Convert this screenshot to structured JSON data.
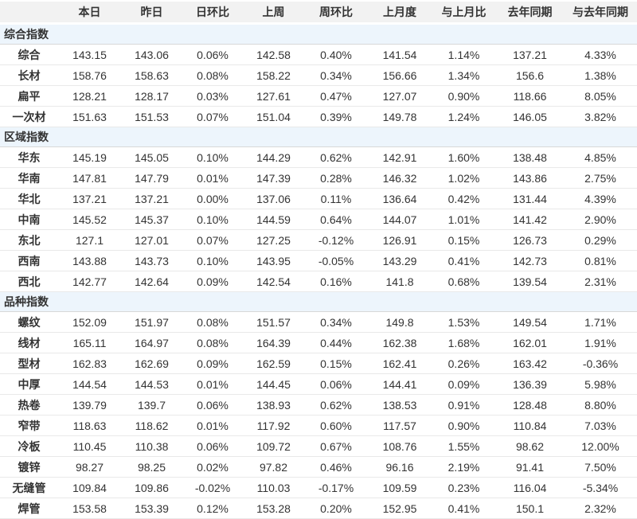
{
  "colors": {
    "up": "#e2392f",
    "down": "#23a143",
    "neutral": "#333333",
    "header_bg": "#f2f2f2",
    "section_bg": "#edf5fc"
  },
  "chart_data": {
    "type": "table",
    "columns": [
      "",
      "本日",
      "昨日",
      "日环比",
      "上周",
      "周环比",
      "上月度",
      "与上月比",
      "去年同期",
      "与去年同期"
    ],
    "groups": [
      {
        "label": "综合指数",
        "rows": [
          {
            "label": "综合",
            "values": [
              "143.15",
              "143.06",
              "0.06%",
              "142.58",
              "0.40%",
              "141.54",
              "1.14%",
              "137.21",
              "4.33%"
            ]
          },
          {
            "label": "长材",
            "values": [
              "158.76",
              "158.63",
              "0.08%",
              "158.22",
              "0.34%",
              "156.66",
              "1.34%",
              "156.6",
              "1.38%"
            ]
          },
          {
            "label": "扁平",
            "values": [
              "128.21",
              "128.17",
              "0.03%",
              "127.61",
              "0.47%",
              "127.07",
              "0.90%",
              "118.66",
              "8.05%"
            ]
          },
          {
            "label": "一次材",
            "values": [
              "151.63",
              "151.53",
              "0.07%",
              "151.04",
              "0.39%",
              "149.78",
              "1.24%",
              "146.05",
              "3.82%"
            ]
          }
        ]
      },
      {
        "label": "区域指数",
        "rows": [
          {
            "label": "华东",
            "values": [
              "145.19",
              "145.05",
              "0.10%",
              "144.29",
              "0.62%",
              "142.91",
              "1.60%",
              "138.48",
              "4.85%"
            ]
          },
          {
            "label": "华南",
            "values": [
              "147.81",
              "147.79",
              "0.01%",
              "147.39",
              "0.28%",
              "146.32",
              "1.02%",
              "143.86",
              "2.75%"
            ]
          },
          {
            "label": "华北",
            "values": [
              "137.21",
              "137.21",
              "0.00%",
              "137.06",
              "0.11%",
              "136.64",
              "0.42%",
              "131.44",
              "4.39%"
            ]
          },
          {
            "label": "中南",
            "values": [
              "145.52",
              "145.37",
              "0.10%",
              "144.59",
              "0.64%",
              "144.07",
              "1.01%",
              "141.42",
              "2.90%"
            ]
          },
          {
            "label": "东北",
            "values": [
              "127.1",
              "127.01",
              "0.07%",
              "127.25",
              "-0.12%",
              "126.91",
              "0.15%",
              "126.73",
              "0.29%"
            ]
          },
          {
            "label": "西南",
            "values": [
              "143.88",
              "143.73",
              "0.10%",
              "143.95",
              "-0.05%",
              "143.29",
              "0.41%",
              "142.73",
              "0.81%"
            ]
          },
          {
            "label": "西北",
            "values": [
              "142.77",
              "142.64",
              "0.09%",
              "142.54",
              "0.16%",
              "141.8",
              "0.68%",
              "139.54",
              "2.31%"
            ]
          }
        ]
      },
      {
        "label": "品种指数",
        "rows": [
          {
            "label": "螺纹",
            "values": [
              "152.09",
              "151.97",
              "0.08%",
              "151.57",
              "0.34%",
              "149.8",
              "1.53%",
              "149.54",
              "1.71%"
            ]
          },
          {
            "label": "线材",
            "values": [
              "165.11",
              "164.97",
              "0.08%",
              "164.39",
              "0.44%",
              "162.38",
              "1.68%",
              "162.01",
              "1.91%"
            ]
          },
          {
            "label": "型材",
            "values": [
              "162.83",
              "162.69",
              "0.09%",
              "162.59",
              "0.15%",
              "162.41",
              "0.26%",
              "163.42",
              "-0.36%"
            ]
          },
          {
            "label": "中厚",
            "values": [
              "144.54",
              "144.53",
              "0.01%",
              "144.45",
              "0.06%",
              "144.41",
              "0.09%",
              "136.39",
              "5.98%"
            ]
          },
          {
            "label": "热卷",
            "values": [
              "139.79",
              "139.7",
              "0.06%",
              "138.93",
              "0.62%",
              "138.53",
              "0.91%",
              "128.48",
              "8.80%"
            ]
          },
          {
            "label": "窄带",
            "values": [
              "118.63",
              "118.62",
              "0.01%",
              "117.92",
              "0.60%",
              "117.57",
              "0.90%",
              "110.84",
              "7.03%"
            ]
          },
          {
            "label": "冷板",
            "values": [
              "110.45",
              "110.38",
              "0.06%",
              "109.72",
              "0.67%",
              "108.76",
              "1.55%",
              "98.62",
              "12.00%"
            ]
          },
          {
            "label": "镀锌",
            "values": [
              "98.27",
              "98.25",
              "0.02%",
              "97.82",
              "0.46%",
              "96.16",
              "2.19%",
              "91.41",
              "7.50%"
            ]
          },
          {
            "label": "无缝管",
            "values": [
              "109.84",
              "109.86",
              "-0.02%",
              "110.03",
              "-0.17%",
              "109.59",
              "0.23%",
              "116.04",
              "-5.34%"
            ]
          },
          {
            "label": "焊管",
            "values": [
              "153.58",
              "153.39",
              "0.12%",
              "153.28",
              "0.20%",
              "152.95",
              "0.41%",
              "150.1",
              "2.32%"
            ]
          }
        ]
      }
    ]
  }
}
